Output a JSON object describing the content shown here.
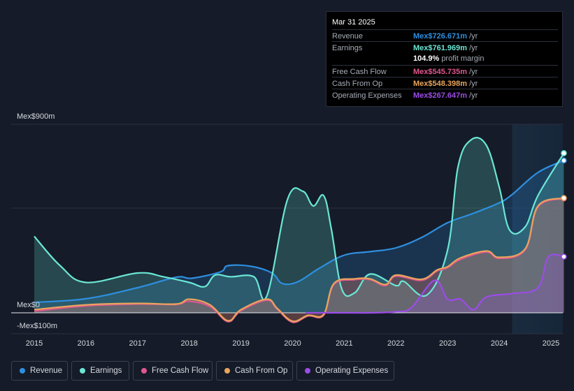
{
  "tooltip": {
    "date": "Mar 31 2025",
    "rows": [
      {
        "label": "Revenue",
        "value": "Mex$726.671m",
        "unit": "/yr",
        "color": "#2e8fe0"
      },
      {
        "label": "Earnings",
        "value": "Mex$761.969m",
        "unit": "/yr",
        "color": "#6be6d4"
      },
      {
        "label": "Free Cash Flow",
        "value": "Mex$545.735m",
        "unit": "/yr",
        "color": "#e0578f"
      },
      {
        "label": "Cash From Op",
        "value": "Mex$548.398m",
        "unit": "/yr",
        "color": "#e8a55c"
      },
      {
        "label": "Operating Expenses",
        "value": "Mex$267.647m",
        "unit": "/yr",
        "color": "#9b4de6"
      }
    ],
    "margin_value": "104.9%",
    "margin_label": "profit margin"
  },
  "chart_data": {
    "type": "area",
    "title": "",
    "x_ticks": [
      "2015",
      "2016",
      "2017",
      "2018",
      "2019",
      "2020",
      "2021",
      "2022",
      "2023",
      "2024",
      "2025"
    ],
    "y_labels": {
      "top": "Mex$900m",
      "zero": "Mex$0",
      "bottom": "-Mex$100m"
    },
    "ylim": [
      -100,
      900
    ],
    "xlim": [
      2014.55,
      2025.25
    ],
    "forecast_start": 2024.25,
    "series": [
      {
        "name": "Revenue",
        "color": "#2e8fe0",
        "points": [
          [
            2015,
            50
          ],
          [
            2016,
            67
          ],
          [
            2017,
            120
          ],
          [
            2017.75,
            170
          ],
          [
            2018.05,
            165
          ],
          [
            2018.6,
            195
          ],
          [
            2018.75,
            225
          ],
          [
            2019.2,
            222
          ],
          [
            2019.6,
            190
          ],
          [
            2019.8,
            140
          ],
          [
            2020.1,
            148
          ],
          [
            2020.5,
            210
          ],
          [
            2021,
            275
          ],
          [
            2021.5,
            292
          ],
          [
            2022,
            310
          ],
          [
            2022.5,
            360
          ],
          [
            2023,
            430
          ],
          [
            2023.5,
            475
          ],
          [
            2024,
            525
          ],
          [
            2024.25,
            565
          ],
          [
            2024.75,
            670
          ],
          [
            2025.25,
            727
          ]
        ]
      },
      {
        "name": "Earnings",
        "color": "#6be6d4",
        "points": [
          [
            2015,
            365
          ],
          [
            2015.5,
            225
          ],
          [
            2016,
            145
          ],
          [
            2017,
            190
          ],
          [
            2017.5,
            172
          ],
          [
            2018,
            145
          ],
          [
            2018.3,
            125
          ],
          [
            2018.5,
            180
          ],
          [
            2018.8,
            172
          ],
          [
            2019.25,
            172
          ],
          [
            2019.5,
            80
          ],
          [
            2019.9,
            540
          ],
          [
            2020.2,
            580
          ],
          [
            2020.4,
            510
          ],
          [
            2020.6,
            560
          ],
          [
            2020.75,
            400
          ],
          [
            2020.95,
            115
          ],
          [
            2021.2,
            95
          ],
          [
            2021.5,
            185
          ],
          [
            2022,
            130
          ],
          [
            2022.15,
            150
          ],
          [
            2022.6,
            85
          ],
          [
            2023,
            300
          ],
          [
            2023.2,
            695
          ],
          [
            2023.45,
            825
          ],
          [
            2023.75,
            800
          ],
          [
            2024,
            600
          ],
          [
            2024.2,
            395
          ],
          [
            2024.5,
            410
          ],
          [
            2024.75,
            560
          ],
          [
            2025.25,
            762
          ]
        ]
      },
      {
        "name": "Free Cash Flow",
        "color": "#e0578f",
        "points": [
          [
            2015,
            8
          ],
          [
            2016,
            33
          ],
          [
            2017,
            42
          ],
          [
            2017.75,
            40
          ],
          [
            2018,
            55
          ],
          [
            2018.4,
            30
          ],
          [
            2018.75,
            -42
          ],
          [
            2019,
            10
          ],
          [
            2019.5,
            60
          ],
          [
            2019.7,
            18
          ],
          [
            2020,
            -45
          ],
          [
            2020.3,
            -15
          ],
          [
            2020.6,
            -12
          ],
          [
            2020.8,
            135
          ],
          [
            2021.2,
            158
          ],
          [
            2021.5,
            158
          ],
          [
            2021.8,
            130
          ],
          [
            2022,
            175
          ],
          [
            2022.5,
            155
          ],
          [
            2022.8,
            200
          ],
          [
            2023,
            215
          ],
          [
            2023.25,
            255
          ],
          [
            2023.75,
            290
          ],
          [
            2024,
            260
          ],
          [
            2024.5,
            300
          ],
          [
            2024.75,
            505
          ],
          [
            2025.25,
            546
          ]
        ]
      },
      {
        "name": "Cash From Op",
        "color": "#e8a55c",
        "points": [
          [
            2015,
            15
          ],
          [
            2016,
            38
          ],
          [
            2017,
            45
          ],
          [
            2017.75,
            42
          ],
          [
            2018,
            65
          ],
          [
            2018.4,
            38
          ],
          [
            2018.75,
            -38
          ],
          [
            2019,
            15
          ],
          [
            2019.5,
            65
          ],
          [
            2019.7,
            22
          ],
          [
            2020,
            -40
          ],
          [
            2020.3,
            -12
          ],
          [
            2020.6,
            -8
          ],
          [
            2020.8,
            140
          ],
          [
            2021.2,
            162
          ],
          [
            2021.5,
            162
          ],
          [
            2021.8,
            135
          ],
          [
            2022,
            180
          ],
          [
            2022.5,
            160
          ],
          [
            2022.8,
            205
          ],
          [
            2023,
            220
          ],
          [
            2023.25,
            262
          ],
          [
            2023.75,
            295
          ],
          [
            2024,
            265
          ],
          [
            2024.5,
            305
          ],
          [
            2024.75,
            510
          ],
          [
            2025.25,
            548
          ]
        ]
      },
      {
        "name": "Operating Expenses",
        "color": "#9b4de6",
        "points": [
          [
            2020.25,
            0
          ],
          [
            2021,
            0
          ],
          [
            2021.5,
            0
          ],
          [
            2022,
            5
          ],
          [
            2022.3,
            25
          ],
          [
            2022.75,
            155
          ],
          [
            2023,
            65
          ],
          [
            2023.25,
            65
          ],
          [
            2023.5,
            15
          ],
          [
            2023.75,
            75
          ],
          [
            2024.25,
            92
          ],
          [
            2024.75,
            120
          ],
          [
            2024.95,
            267
          ],
          [
            2025.25,
            268
          ]
        ]
      }
    ]
  },
  "legend": [
    {
      "label": "Revenue",
      "color": "#2e8fe0"
    },
    {
      "label": "Earnings",
      "color": "#6be6d4"
    },
    {
      "label": "Free Cash Flow",
      "color": "#e0578f"
    },
    {
      "label": "Cash From Op",
      "color": "#e8a55c"
    },
    {
      "label": "Operating Expenses",
      "color": "#9b4de6"
    }
  ]
}
